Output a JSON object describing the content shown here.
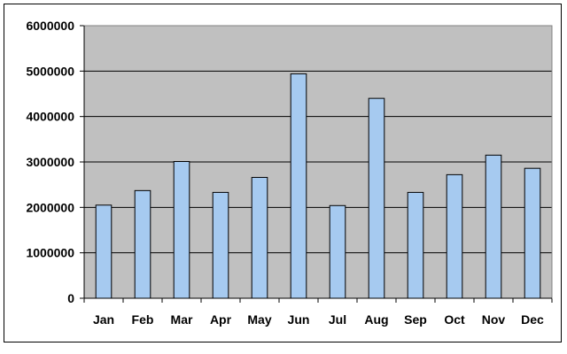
{
  "chart_data": {
    "type": "bar",
    "title": "",
    "xlabel": "",
    "ylabel": "",
    "categories": [
      "Jan",
      "Feb",
      "Mar",
      "Apr",
      "May",
      "Jun",
      "Jul",
      "Aug",
      "Sep",
      "Oct",
      "Nov",
      "Dec"
    ],
    "values": [
      2050000,
      2370000,
      3010000,
      2330000,
      2660000,
      4940000,
      2040000,
      4400000,
      2330000,
      2720000,
      3150000,
      2860000
    ],
    "ylim": [
      0,
      6000000
    ],
    "yticks": [
      "0",
      "1000000",
      "2000000",
      "3000000",
      "4000000",
      "5000000",
      "6000000"
    ],
    "grid": true,
    "legend": "none",
    "colors": {
      "plot_background": "#c0c0c0",
      "bar_fill": "#a6caf0",
      "bar_stroke": "#000000",
      "gridline": "#000000"
    }
  }
}
